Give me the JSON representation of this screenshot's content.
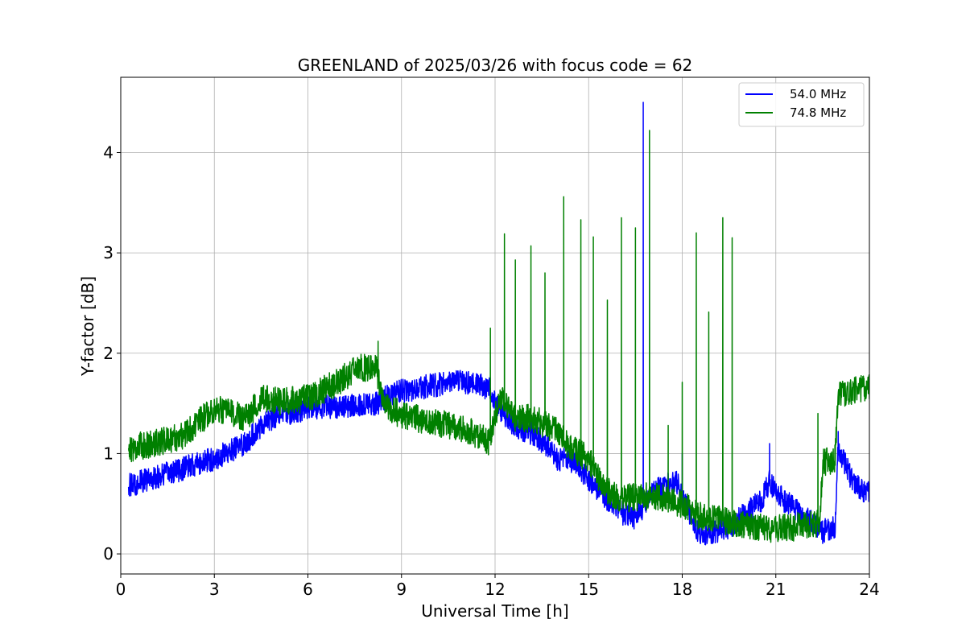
{
  "chart_data": {
    "type": "line",
    "title": "GREENLAND of 2025/03/26 with focus code = 62",
    "xlabel": "Universal Time [h]",
    "ylabel": "Y-factor [dB]",
    "xlim": [
      0,
      24
    ],
    "ylim": [
      -0.2,
      4.75
    ],
    "x_ticks": [
      0,
      3,
      6,
      9,
      12,
      15,
      18,
      21,
      24
    ],
    "y_ticks": [
      0,
      1,
      2,
      3,
      4
    ],
    "grid": true,
    "legend_position": "top-right",
    "series": [
      {
        "name": "54.0 MHz",
        "color": "#0000ff",
        "noise": 0.12,
        "points": [
          [
            0.25,
            0.68
          ],
          [
            1.0,
            0.75
          ],
          [
            2.0,
            0.85
          ],
          [
            3.0,
            0.95
          ],
          [
            4.0,
            1.1
          ],
          [
            4.5,
            1.28
          ],
          [
            5.0,
            1.38
          ],
          [
            6.0,
            1.45
          ],
          [
            7.0,
            1.47
          ],
          [
            8.2,
            1.5
          ],
          [
            8.5,
            1.56
          ],
          [
            9.0,
            1.62
          ],
          [
            10.0,
            1.68
          ],
          [
            11.0,
            1.72
          ],
          [
            11.8,
            1.65
          ],
          [
            12.2,
            1.4
          ],
          [
            12.8,
            1.25
          ],
          [
            13.2,
            1.2
          ],
          [
            13.8,
            1.05
          ],
          [
            14.0,
            0.95
          ],
          [
            14.6,
            0.92
          ],
          [
            15.0,
            0.72
          ],
          [
            15.5,
            0.58
          ],
          [
            16.0,
            0.42
          ],
          [
            16.5,
            0.35
          ],
          [
            17.0,
            0.6
          ],
          [
            17.8,
            0.75
          ],
          [
            18.0,
            0.55
          ],
          [
            18.5,
            0.2
          ],
          [
            19.0,
            0.22
          ],
          [
            19.6,
            0.28
          ],
          [
            20.0,
            0.4
          ],
          [
            20.5,
            0.52
          ],
          [
            20.8,
            0.72
          ],
          [
            21.2,
            0.55
          ],
          [
            21.6,
            0.45
          ],
          [
            22.0,
            0.35
          ],
          [
            22.5,
            0.22
          ],
          [
            22.9,
            0.28
          ],
          [
            23.0,
            1.05
          ],
          [
            23.5,
            0.7
          ],
          [
            24.0,
            0.6
          ]
        ],
        "spikes": [
          [
            16.75,
            4.5
          ],
          [
            18.0,
            1.0
          ],
          [
            20.8,
            1.1
          ],
          [
            23.0,
            1.22
          ]
        ]
      },
      {
        "name": "74.8 MHz",
        "color": "#008000",
        "noise": 0.14,
        "points": [
          [
            0.25,
            1.05
          ],
          [
            1.0,
            1.1
          ],
          [
            2.0,
            1.18
          ],
          [
            3.0,
            1.45
          ],
          [
            4.0,
            1.35
          ],
          [
            4.5,
            1.55
          ],
          [
            5.0,
            1.52
          ],
          [
            6.0,
            1.55
          ],
          [
            7.0,
            1.72
          ],
          [
            7.6,
            1.85
          ],
          [
            8.2,
            1.85
          ],
          [
            8.4,
            1.5
          ],
          [
            9.0,
            1.38
          ],
          [
            10.0,
            1.32
          ],
          [
            11.0,
            1.25
          ],
          [
            11.8,
            1.12
          ],
          [
            12.2,
            1.6
          ],
          [
            12.6,
            1.35
          ],
          [
            13.2,
            1.35
          ],
          [
            14.0,
            1.22
          ],
          [
            14.4,
            1.05
          ],
          [
            15.0,
            0.95
          ],
          [
            15.5,
            0.65
          ],
          [
            16.0,
            0.55
          ],
          [
            17.0,
            0.58
          ],
          [
            18.0,
            0.5
          ],
          [
            18.5,
            0.38
          ],
          [
            19.5,
            0.32
          ],
          [
            20.0,
            0.28
          ],
          [
            21.0,
            0.25
          ],
          [
            22.0,
            0.28
          ],
          [
            22.4,
            0.3
          ],
          [
            22.5,
            0.9
          ],
          [
            22.9,
            0.95
          ],
          [
            23.0,
            1.6
          ],
          [
            24.0,
            1.65
          ]
        ],
        "spikes": [
          [
            8.25,
            2.12
          ],
          [
            11.85,
            2.25
          ],
          [
            12.3,
            3.19
          ],
          [
            12.65,
            2.93
          ],
          [
            13.15,
            3.07
          ],
          [
            13.6,
            2.8
          ],
          [
            14.2,
            3.56
          ],
          [
            14.75,
            3.33
          ],
          [
            15.15,
            3.16
          ],
          [
            15.6,
            2.53
          ],
          [
            16.05,
            3.35
          ],
          [
            16.5,
            3.25
          ],
          [
            16.95,
            4.22
          ],
          [
            17.55,
            1.28
          ],
          [
            18.0,
            1.71
          ],
          [
            18.45,
            3.2
          ],
          [
            18.85,
            2.41
          ],
          [
            19.3,
            3.35
          ],
          [
            19.6,
            3.15
          ],
          [
            22.35,
            1.4
          ]
        ]
      }
    ]
  }
}
